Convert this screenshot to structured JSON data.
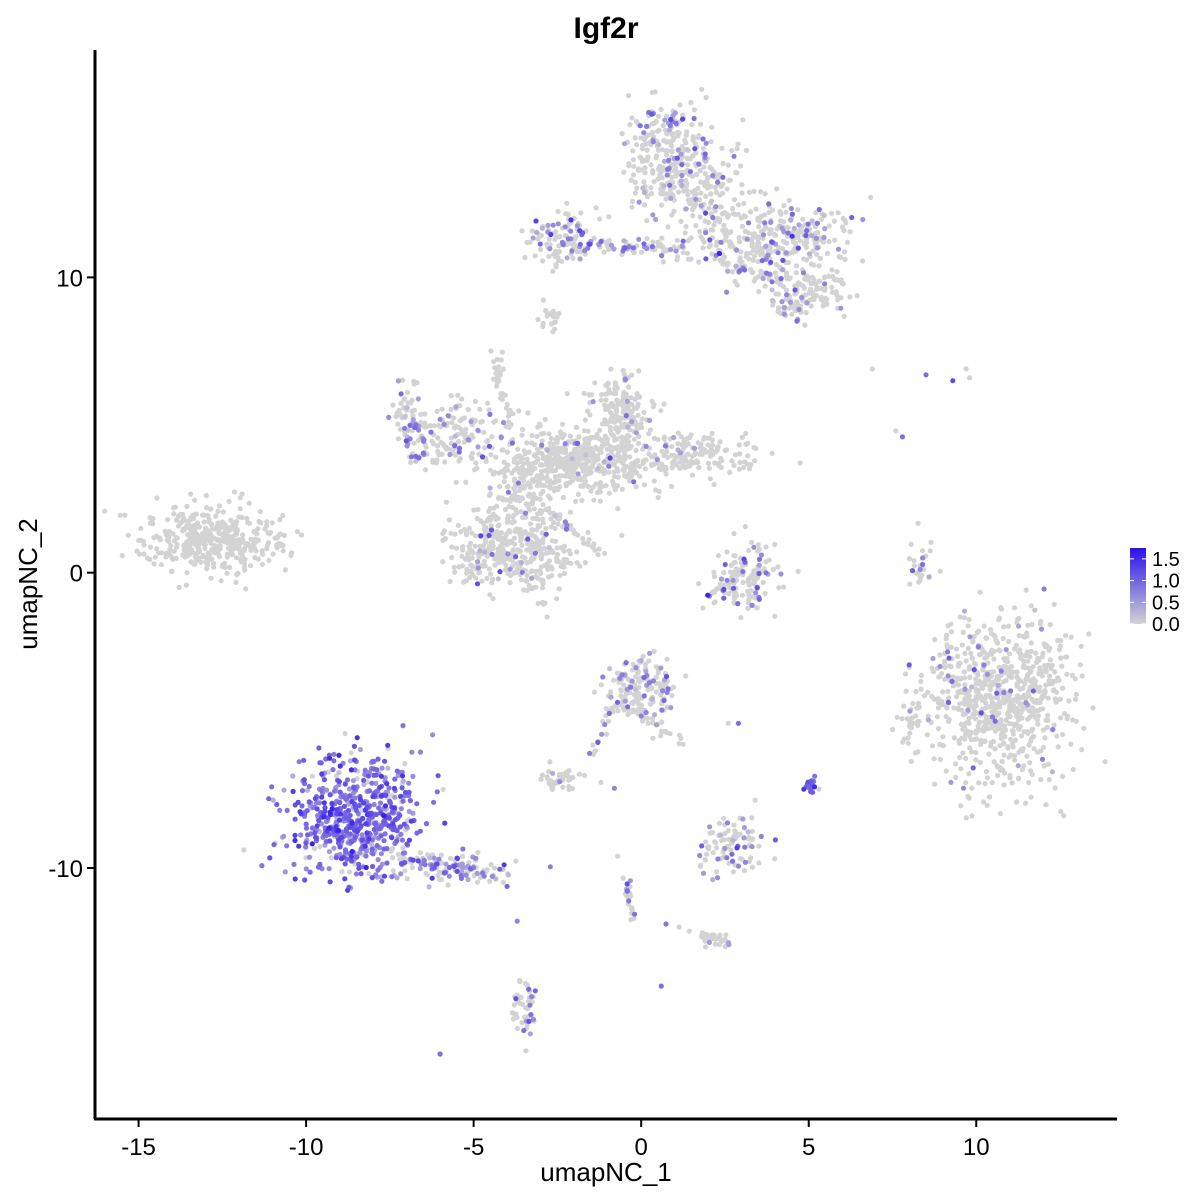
{
  "chart_data": {
    "type": "scatter",
    "title": "Igf2r",
    "xlabel": "umapNC_1",
    "ylabel": "umapNC_2",
    "xlim": [
      -16.3,
      14.2
    ],
    "ylim": [
      -18.5,
      17.7
    ],
    "x_ticks": [
      -15,
      -10,
      -5,
      0,
      5,
      10
    ],
    "y_ticks": [
      -10,
      0,
      10
    ],
    "x_tick_labels": [
      "-15",
      "-10",
      "-5",
      "0",
      "5",
      "10"
    ],
    "y_tick_labels": [
      "-10",
      "0",
      "10"
    ],
    "grid": false,
    "legend_position": "right",
    "color_scale": {
      "low_color": "#d3d3d3",
      "high_color": "#2a10ee",
      "min": 0.0,
      "max": 1.75,
      "breaks": [
        0.0,
        0.5,
        1.0,
        1.5
      ],
      "break_labels": [
        "0.0",
        "0.5",
        "1.0",
        "1.5"
      ]
    },
    "clusters": [
      {
        "cx": -12.8,
        "cy": 1.1,
        "sx": 1.05,
        "sy": 0.55,
        "n": 420,
        "expr_frac": 0.0,
        "expr_mean": 0.0
      },
      {
        "cx": 10.7,
        "cy": -4.3,
        "sx": 1.05,
        "sy": 1.4,
        "n": 760,
        "expr_frac": 0.06,
        "expr_mean": 0.55
      },
      {
        "cx": -8.6,
        "cy": -8.3,
        "sx": 0.95,
        "sy": 1.05,
        "n": 620,
        "expr_frac": 0.88,
        "expr_mean": 0.9
      },
      {
        "cx": -5.5,
        "cy": -10.0,
        "sx": 0.9,
        "sy": 0.25,
        "n": 70,
        "expr_frac": 0.55,
        "expr_mean": 0.7
      },
      {
        "cx": -1.9,
        "cy": 3.8,
        "sx": 1.1,
        "sy": 0.55,
        "n": 480,
        "expr_frac": 0.03,
        "expr_mean": 0.6
      },
      {
        "cx": -0.6,
        "cy": 5.4,
        "sx": 0.5,
        "sy": 0.7,
        "n": 180,
        "expr_frac": 0.03,
        "expr_mean": 0.6
      },
      {
        "cx": 1.5,
        "cy": 4.0,
        "sx": 0.9,
        "sy": 0.35,
        "n": 160,
        "expr_frac": 0.08,
        "expr_mean": 0.6
      },
      {
        "cx": -5.5,
        "cy": 4.6,
        "sx": 0.8,
        "sy": 0.55,
        "n": 150,
        "expr_frac": 0.15,
        "expr_mean": 0.7
      },
      {
        "cx": -6.9,
        "cy": 5.2,
        "sx": 0.3,
        "sy": 0.6,
        "n": 60,
        "expr_frac": 0.45,
        "expr_mean": 0.7
      },
      {
        "cx": -4.6,
        "cy": 0.9,
        "sx": 0.55,
        "sy": 0.6,
        "n": 170,
        "expr_frac": 0.08,
        "expr_mean": 0.6
      },
      {
        "cx": -3.2,
        "cy": 0.6,
        "sx": 0.7,
        "sy": 0.8,
        "n": 230,
        "expr_frac": 0.06,
        "expr_mean": 0.6
      },
      {
        "cx": -3.6,
        "cy": 2.6,
        "sx": 0.45,
        "sy": 0.5,
        "n": 90,
        "expr_frac": 0.05,
        "expr_mean": 0.6
      },
      {
        "cx": -4.3,
        "cy": 6.9,
        "sx": 0.12,
        "sy": 0.3,
        "n": 15,
        "expr_frac": 0.0,
        "expr_mean": 0.0
      },
      {
        "cx": 0.8,
        "cy": 14.3,
        "sx": 0.65,
        "sy": 0.8,
        "n": 230,
        "expr_frac": 0.2,
        "expr_mean": 0.7
      },
      {
        "cx": 1.6,
        "cy": 13.0,
        "sx": 0.8,
        "sy": 0.7,
        "n": 140,
        "expr_frac": 0.12,
        "expr_mean": 0.6
      },
      {
        "cx": -2.4,
        "cy": 11.3,
        "sx": 0.5,
        "sy": 0.45,
        "n": 110,
        "expr_frac": 0.3,
        "expr_mean": 0.75
      },
      {
        "cx": -0.4,
        "cy": 11.1,
        "sx": 0.9,
        "sy": 0.2,
        "n": 50,
        "expr_frac": 0.25,
        "expr_mean": 0.7
      },
      {
        "cx": 2.8,
        "cy": 11.2,
        "sx": 1.0,
        "sy": 0.6,
        "n": 170,
        "expr_frac": 0.12,
        "expr_mean": 0.7
      },
      {
        "cx": 4.6,
        "cy": 11.4,
        "sx": 0.9,
        "sy": 0.6,
        "n": 170,
        "expr_frac": 0.2,
        "expr_mean": 0.7
      },
      {
        "cx": 4.9,
        "cy": 9.6,
        "sx": 0.7,
        "sy": 0.45,
        "n": 120,
        "expr_frac": 0.12,
        "expr_mean": 0.7
      },
      {
        "cx": 4.4,
        "cy": 8.9,
        "sx": 0.3,
        "sy": 0.25,
        "n": 30,
        "expr_frac": 0.3,
        "expr_mean": 0.7
      },
      {
        "cx": -2.7,
        "cy": 8.6,
        "sx": 0.15,
        "sy": 0.25,
        "n": 20,
        "expr_frac": 0.0,
        "expr_mean": 0.0
      },
      {
        "cx": 3.2,
        "cy": -0.2,
        "sx": 0.5,
        "sy": 0.6,
        "n": 130,
        "expr_frac": 0.12,
        "expr_mean": 0.8
      },
      {
        "cx": 2.3,
        "cy": -0.5,
        "sx": 0.25,
        "sy": 0.2,
        "n": 20,
        "expr_frac": 0.3,
        "expr_mean": 1.0
      },
      {
        "cx": 0.0,
        "cy": -3.9,
        "sx": 0.5,
        "sy": 0.5,
        "n": 150,
        "expr_frac": 0.2,
        "expr_mean": 0.7
      },
      {
        "cx": -2.4,
        "cy": -7.0,
        "sx": 0.3,
        "sy": 0.2,
        "n": 40,
        "expr_frac": 0.05,
        "expr_mean": 0.5
      },
      {
        "cx": 2.7,
        "cy": -9.3,
        "sx": 0.5,
        "sy": 0.45,
        "n": 90,
        "expr_frac": 0.3,
        "expr_mean": 0.7
      },
      {
        "cx": 5.1,
        "cy": -7.2,
        "sx": 0.1,
        "sy": 0.15,
        "n": 18,
        "expr_frac": 0.9,
        "expr_mean": 1.0
      },
      {
        "cx": 2.4,
        "cy": -12.5,
        "sx": 0.3,
        "sy": 0.15,
        "n": 20,
        "expr_frac": 0.2,
        "expr_mean": 0.6
      },
      {
        "cx": -3.4,
        "cy": -14.9,
        "sx": 0.15,
        "sy": 0.5,
        "n": 35,
        "expr_frac": 0.3,
        "expr_mean": 0.7
      },
      {
        "cx": 8.3,
        "cy": 0.3,
        "sx": 0.15,
        "sy": 0.45,
        "n": 25,
        "expr_frac": 0.2,
        "expr_mean": 0.8
      },
      {
        "cx": 8.0,
        "cy": -5.0,
        "sx": 0.25,
        "sy": 0.5,
        "n": 30,
        "expr_frac": 0.05,
        "expr_mean": 0.6
      }
    ],
    "trails": [
      {
        "from": [
          -4.3,
          6.8
        ],
        "to": [
          -3.4,
          3.0
        ],
        "n": 35,
        "w": 0.15,
        "expr_frac": 0.0
      },
      {
        "from": [
          -2.8,
          2.1
        ],
        "to": [
          -1.2,
          0.7
        ],
        "n": 40,
        "w": 0.12,
        "expr_frac": 0.1
      },
      {
        "from": [
          -0.6,
          -4.3
        ],
        "to": [
          1.2,
          -5.8
        ],
        "n": 40,
        "w": 0.2,
        "expr_frac": 0.1
      },
      {
        "from": [
          -0.7,
          -4.4
        ],
        "to": [
          -1.6,
          -6.4
        ],
        "n": 20,
        "w": 0.15,
        "expr_frac": 0.25
      },
      {
        "from": [
          -1.1,
          11.0
        ],
        "to": [
          1.3,
          11.0
        ],
        "n": 25,
        "w": 0.12,
        "expr_frac": 0.3
      },
      {
        "from": [
          2.6,
          10.4
        ],
        "to": [
          4.0,
          10.0
        ],
        "n": 20,
        "w": 0.15,
        "expr_frac": 0.3
      },
      {
        "from": [
          -7.5,
          -9.5
        ],
        "to": [
          -4.2,
          -10.3
        ],
        "n": 60,
        "w": 0.35,
        "expr_frac": 0.5
      },
      {
        "from": [
          -0.5,
          -10.3
        ],
        "to": [
          -0.2,
          -11.9
        ],
        "n": 25,
        "w": 0.12,
        "expr_frac": 0.3
      },
      {
        "from": [
          0.6,
          -11.8
        ],
        "to": [
          2.2,
          -12.4
        ],
        "n": 15,
        "w": 0.12,
        "expr_frac": 0.1
      },
      {
        "from": [
          -3.6,
          -13.8
        ],
        "to": [
          -3.8,
          -15.2
        ],
        "n": 12,
        "w": 0.12,
        "expr_frac": 0.2
      }
    ],
    "singletons": [
      {
        "x": 6.9,
        "y": 6.9,
        "v": 0.0
      },
      {
        "x": 8.5,
        "y": 6.7,
        "v": 0.9
      },
      {
        "x": 9.3,
        "y": 6.5,
        "v": 1.2
      },
      {
        "x": 9.7,
        "y": 6.9,
        "v": 0.0
      },
      {
        "x": 9.8,
        "y": 6.6,
        "v": 0.0
      },
      {
        "x": 7.6,
        "y": 4.8,
        "v": 0.0
      },
      {
        "x": 7.8,
        "y": 4.6,
        "v": 0.9
      },
      {
        "x": -6.0,
        "y": -16.3,
        "v": 0.9
      },
      {
        "x": 0.6,
        "y": -14.0,
        "v": 0.9
      },
      {
        "x": -1.2,
        "y": -7.1,
        "v": 0.0
      },
      {
        "x": -0.8,
        "y": -7.3,
        "v": 0.7
      },
      {
        "x": -0.7,
        "y": -9.6,
        "v": 0.0
      },
      {
        "x": 2.9,
        "y": -5.1,
        "v": 0.9
      },
      {
        "x": 2.6,
        "y": -5.1,
        "v": 0.0
      },
      {
        "x": 3.3,
        "y": -8.3,
        "v": 0.0
      },
      {
        "x": 3.4,
        "y": -7.7,
        "v": 0.0
      },
      {
        "x": -3.7,
        "y": -11.8,
        "v": 0.7
      },
      {
        "x": 6.0,
        "y": 9.8,
        "v": 0.0
      },
      {
        "x": -4.3,
        "y": 6.6,
        "v": 0.0
      }
    ]
  }
}
